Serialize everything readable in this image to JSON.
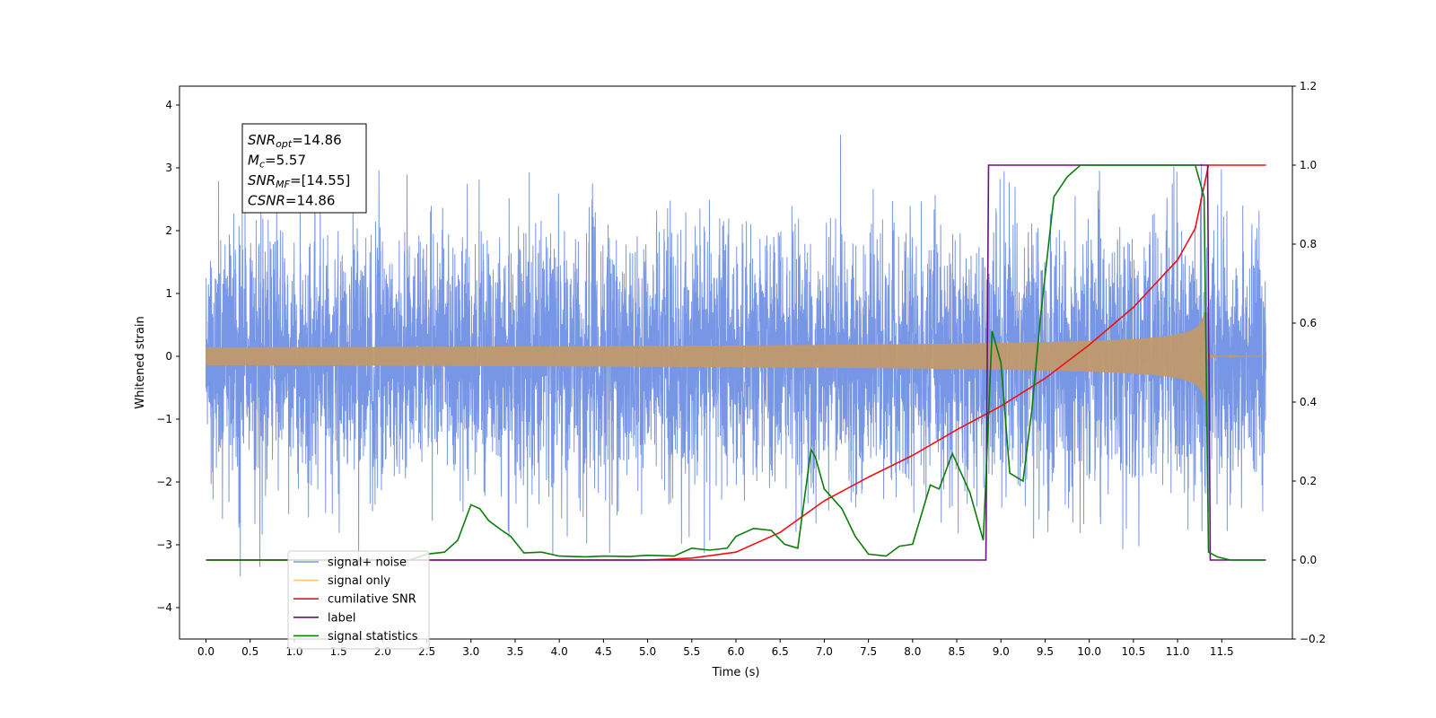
{
  "chart_data": {
    "type": "line",
    "xlabel": "Time (s)",
    "ylabel_left": "Whitened strain",
    "x_ticks": [
      "0.0",
      "0.5",
      "1.0",
      "1.5",
      "2.0",
      "2.5",
      "3.0",
      "3.5",
      "4.0",
      "4.5",
      "5.0",
      "5.5",
      "6.0",
      "6.5",
      "7.0",
      "7.5",
      "8.0",
      "8.5",
      "9.0",
      "9.5",
      "10.0",
      "10.5",
      "11.0",
      "11.5"
    ],
    "left_y_ticks": [
      "4",
      "3",
      "2",
      "1",
      "0",
      "−1",
      "−2",
      "−3",
      "−4"
    ],
    "right_y_ticks": [
      "1.2",
      "1.0",
      "0.8",
      "0.6",
      "0.4",
      "0.2",
      "0.0",
      "−0.2"
    ],
    "xlim": [
      -0.3,
      12.3
    ],
    "ylim_left": [
      -4.5,
      4.3
    ],
    "ylim_right": [
      -0.2,
      1.2
    ],
    "grid": false,
    "legend_position": "lower-left",
    "annotation_box": {
      "lines": [
        {
          "base": "SNR",
          "sub": "opt",
          "value": "=14.86"
        },
        {
          "base": "M",
          "sub": "c",
          "value": "=5.57"
        },
        {
          "base": "SNR",
          "sub": "MF",
          "value": "=[14.55]"
        },
        {
          "base": "CSNR",
          "sub": "",
          "value": "=14.86"
        }
      ]
    },
    "series": [
      {
        "name": "signal+ noise",
        "color": "#7896e6",
        "axis": "left",
        "kind": "noise",
        "x_range": [
          0.0,
          12.0
        ],
        "std": 1.0,
        "peak_range": [
          -4.1,
          3.9
        ]
      },
      {
        "name": "signal only",
        "color": "#ffc56e",
        "axis": "left",
        "kind": "chirp",
        "x_range": [
          0.0,
          12.0
        ],
        "merge_time": 11.32,
        "peak_amplitude": 0.95
      },
      {
        "name": "cumilative SNR",
        "color": "#ee1111",
        "axis": "right",
        "kind": "line",
        "x": [
          0.0,
          5.0,
          5.5,
          6.0,
          6.5,
          7.0,
          7.5,
          8.0,
          8.5,
          9.0,
          9.5,
          10.0,
          10.5,
          11.0,
          11.2,
          11.35,
          12.0
        ],
        "y": [
          0.0,
          0.0,
          0.005,
          0.02,
          0.07,
          0.15,
          0.21,
          0.265,
          0.33,
          0.39,
          0.46,
          0.545,
          0.64,
          0.76,
          0.84,
          1.0,
          1.0
        ]
      },
      {
        "name": "label",
        "color": "#6a0f80",
        "axis": "right",
        "kind": "line",
        "x": [
          0.0,
          8.83,
          8.86,
          11.34,
          11.37,
          12.0
        ],
        "y": [
          0.0,
          0.0,
          1.0,
          1.0,
          0.0,
          0.0
        ]
      },
      {
        "name": "signal statistics",
        "color": "#0a7d0a",
        "axis": "right",
        "kind": "line",
        "x": [
          0.0,
          2.3,
          2.4,
          2.5,
          2.7,
          2.85,
          3.0,
          3.1,
          3.2,
          3.35,
          3.45,
          3.6,
          3.8,
          4.0,
          4.3,
          4.5,
          4.8,
          5.0,
          5.3,
          5.5,
          5.7,
          5.9,
          6.0,
          6.2,
          6.4,
          6.55,
          6.7,
          6.85,
          6.9,
          7.0,
          7.2,
          7.35,
          7.5,
          7.7,
          7.85,
          8.0,
          8.2,
          8.3,
          8.45,
          8.55,
          8.65,
          8.8,
          8.9,
          9.0,
          9.1,
          9.25,
          9.35,
          9.45,
          9.6,
          9.75,
          9.9,
          10.1,
          10.5,
          11.0,
          11.2,
          11.3,
          11.35,
          11.45,
          11.6,
          12.0
        ],
        "y": [
          0.0,
          0.0,
          0.007,
          0.015,
          0.02,
          0.05,
          0.14,
          0.13,
          0.1,
          0.075,
          0.06,
          0.018,
          0.02,
          0.01,
          0.008,
          0.01,
          0.009,
          0.012,
          0.01,
          0.03,
          0.025,
          0.03,
          0.06,
          0.08,
          0.075,
          0.04,
          0.03,
          0.28,
          0.26,
          0.18,
          0.13,
          0.06,
          0.015,
          0.01,
          0.035,
          0.04,
          0.19,
          0.18,
          0.27,
          0.22,
          0.17,
          0.05,
          0.58,
          0.5,
          0.22,
          0.2,
          0.38,
          0.62,
          0.92,
          0.97,
          1.0,
          1.0,
          1.0,
          1.0,
          1.0,
          0.92,
          0.02,
          0.008,
          0.0,
          0.0
        ]
      }
    ],
    "legend": [
      {
        "label": "signal+ noise",
        "color": "#7896e6"
      },
      {
        "label": "signal only",
        "color": "#ffc56e"
      },
      {
        "label": "cumilative SNR",
        "color": "#ee1111"
      },
      {
        "label": "label",
        "color": "#6a0f80"
      },
      {
        "label": "signal statistics",
        "color": "#0a7d0a"
      }
    ]
  }
}
